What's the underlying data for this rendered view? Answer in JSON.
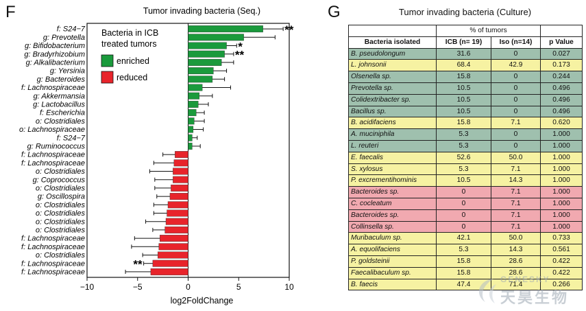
{
  "panels": {
    "left_letter": "F",
    "right_letter": "G"
  },
  "chart_data": {
    "type": "bar",
    "orientation": "horizontal",
    "title": "Tumor invading bacteria (Seq.)",
    "xlabel": "log2FoldChange",
    "xlim": [
      -10,
      10
    ],
    "xticks": [
      -10,
      -5,
      0,
      5,
      10
    ],
    "legend": {
      "title_lines": [
        "Bacteria in ICB",
        "treated tumors"
      ],
      "entries": [
        {
          "label": "enriched",
          "color": "#1a9a3c"
        },
        {
          "label": "reduced",
          "color": "#e8242b"
        }
      ],
      "placement": "top-left"
    },
    "bars": [
      {
        "label": "f: S24−7",
        "value": 7.4,
        "err": 2.0,
        "color": "#1a9a3c",
        "sig": "**"
      },
      {
        "label": "g: Prevotella",
        "value": 5.5,
        "err": 3.1,
        "color": "#1a9a3c",
        "sig": ""
      },
      {
        "label": "g: Bifidobacterium",
        "value": 3.8,
        "err": 1.0,
        "color": "#1a9a3c",
        "sig": "*"
      },
      {
        "label": "g: Bradyrhizobium",
        "value": 3.6,
        "err": 0.9,
        "color": "#1a9a3c",
        "sig": "**"
      },
      {
        "label": "g: Alkalibacterium",
        "value": 3.3,
        "err": 1.2,
        "color": "#1a9a3c",
        "sig": ""
      },
      {
        "label": "g: Yersinia",
        "value": 2.5,
        "err": 1.3,
        "color": "#1a9a3c",
        "sig": ""
      },
      {
        "label": "g: Bacteroides",
        "value": 2.4,
        "err": 1.2,
        "color": "#1a9a3c",
        "sig": ""
      },
      {
        "label": "f: Lachnospiraceae",
        "value": 1.4,
        "err": 2.8,
        "color": "#1a9a3c",
        "sig": ""
      },
      {
        "label": "g: Akkermansia",
        "value": 1.1,
        "err": 1.3,
        "color": "#1a9a3c",
        "sig": ""
      },
      {
        "label": "g: Lactobacillus",
        "value": 1.0,
        "err": 1.0,
        "color": "#1a9a3c",
        "sig": ""
      },
      {
        "label": "f: Escherichia",
        "value": 0.8,
        "err": 0.8,
        "color": "#1a9a3c",
        "sig": ""
      },
      {
        "label": "o: Clostridiales",
        "value": 0.6,
        "err": 1.0,
        "color": "#1a9a3c",
        "sig": ""
      },
      {
        "label": "o: Lachnospiraceae",
        "value": 0.5,
        "err": 1.0,
        "color": "#1a9a3c",
        "sig": ""
      },
      {
        "label": "f: S24−7",
        "value": 0.4,
        "err": 0.5,
        "color": "#1a9a3c",
        "sig": ""
      },
      {
        "label": "g: Ruminococcus",
        "value": 0.4,
        "err": 0.8,
        "color": "#1a9a3c",
        "sig": ""
      },
      {
        "label": "f: Lachnospiraceae",
        "value": -1.3,
        "err": 1.2,
        "color": "#e8242b",
        "sig": ""
      },
      {
        "label": "f: Lachnospiraceae",
        "value": -1.4,
        "err": 2.0,
        "color": "#e8242b",
        "sig": ""
      },
      {
        "label": "o: Clostridiales",
        "value": -1.5,
        "err": 2.3,
        "color": "#e8242b",
        "sig": ""
      },
      {
        "label": "g: Coprococcus",
        "value": -1.5,
        "err": 1.8,
        "color": "#e8242b",
        "sig": ""
      },
      {
        "label": "o: Clostridiales",
        "value": -1.7,
        "err": 1.6,
        "color": "#e8242b",
        "sig": ""
      },
      {
        "label": "g: Oscillospira",
        "value": -1.8,
        "err": 1.3,
        "color": "#e8242b",
        "sig": ""
      },
      {
        "label": "o: Clostridiales",
        "value": -2.0,
        "err": 1.4,
        "color": "#e8242b",
        "sig": ""
      },
      {
        "label": "o: Clostridiales",
        "value": -2.1,
        "err": 1.3,
        "color": "#e8242b",
        "sig": ""
      },
      {
        "label": "o: Clostridiales",
        "value": -2.2,
        "err": 2.0,
        "color": "#e8242b",
        "sig": ""
      },
      {
        "label": "o: Clostridiales",
        "value": -2.3,
        "err": 1.2,
        "color": "#e8242b",
        "sig": ""
      },
      {
        "label": "f: Lachnospiraceae",
        "value": -2.8,
        "err": 2.5,
        "color": "#e8242b",
        "sig": ""
      },
      {
        "label": "f: Lachnospiraceae",
        "value": -2.9,
        "err": 2.7,
        "color": "#e8242b",
        "sig": ""
      },
      {
        "label": "o: Clostridiales",
        "value": -3.0,
        "err": 1.5,
        "color": "#e8242b",
        "sig": ""
      },
      {
        "label": "f: Lachnospiraceae",
        "value": -3.5,
        "err": 0.9,
        "color": "#e8242b",
        "sig": "**"
      },
      {
        "label": "f: Lachnospiraceae",
        "value": -3.7,
        "err": 2.5,
        "color": "#e8242b",
        "sig": ""
      }
    ]
  },
  "table": {
    "title": "Tumor invading bacteria (Culture)",
    "group_header": "% of tumors",
    "columns": [
      "Bacteria isolated",
      "ICB (n= 19)",
      "Iso (n=14)",
      "p Value"
    ],
    "row_colors": {
      "green": "#9fc0ae",
      "yellow": "#f6f2a2",
      "red": "#f1a9b0"
    },
    "rows": [
      {
        "name": "B. pseudolongum",
        "icb": "31.6",
        "iso": "0",
        "p": "0.027",
        "tone": "green"
      },
      {
        "name": "L. johnsonii",
        "icb": "68.4",
        "iso": "42.9",
        "p": "0.173",
        "tone": "yellow"
      },
      {
        "name": "Olsenella sp.",
        "icb": "15.8",
        "iso": "0",
        "p": "0.244",
        "tone": "green"
      },
      {
        "name": "Prevotella sp.",
        "icb": "10.5",
        "iso": "0",
        "p": "0.496",
        "tone": "green"
      },
      {
        "name": "Colidextribacter sp.",
        "icb": "10.5",
        "iso": "0",
        "p": "0.496",
        "tone": "green"
      },
      {
        "name": "Bacillus sp.",
        "icb": "10.5",
        "iso": "0",
        "p": "0.496",
        "tone": "green"
      },
      {
        "name": "B. acidifaciens",
        "icb": "15.8",
        "iso": "7.1",
        "p": "0.620",
        "tone": "yellow"
      },
      {
        "name": "A. muciniphila",
        "icb": "5.3",
        "iso": "0",
        "p": "1.000",
        "tone": "green"
      },
      {
        "name": "L. reuteri",
        "icb": "5.3",
        "iso": "0",
        "p": "1.000",
        "tone": "green"
      },
      {
        "name": "E. faecalis",
        "icb": "52.6",
        "iso": "50.0",
        "p": "1.000",
        "tone": "yellow"
      },
      {
        "name": "S. xylosus",
        "icb": "5.3",
        "iso": "7.1",
        "p": "1.000",
        "tone": "yellow"
      },
      {
        "name": "P. excrementihominis",
        "icb": "10.5",
        "iso": "14.3",
        "p": "1.000",
        "tone": "yellow"
      },
      {
        "name": "Bacteroides sp.",
        "icb": "0",
        "iso": "7.1",
        "p": "1.000",
        "tone": "red"
      },
      {
        "name": "C. cocleatum",
        "icb": "0",
        "iso": "7.1",
        "p": "1.000",
        "tone": "red"
      },
      {
        "name": "Bacteroides sp.",
        "icb": "0",
        "iso": "7.1",
        "p": "1.000",
        "tone": "red"
      },
      {
        "name": "Collinsella sp.",
        "icb": "0",
        "iso": "7.1",
        "p": "1.000",
        "tone": "red"
      },
      {
        "name": "Muribaculum sp.",
        "icb": "42.1",
        "iso": "50.0",
        "p": "0.733",
        "tone": "yellow"
      },
      {
        "name": "A. equolifaciens",
        "icb": "5.3",
        "iso": "14.3",
        "p": "0.561",
        "tone": "yellow"
      },
      {
        "name": "P. goldsteinii",
        "icb": "15.8",
        "iso": "28.6",
        "p": "0.422",
        "tone": "yellow"
      },
      {
        "name": "Faecalibaculum sp.",
        "icb": "15.8",
        "iso": "28.6",
        "p": "0.422",
        "tone": "yellow"
      },
      {
        "name": "B. faecis",
        "icb": "47.4",
        "iso": "71.4",
        "p": "0.266",
        "tone": "yellow"
      }
    ]
  },
  "watermark": {
    "text_en": "GENESKY",
    "text_cn": "天昊生物"
  }
}
